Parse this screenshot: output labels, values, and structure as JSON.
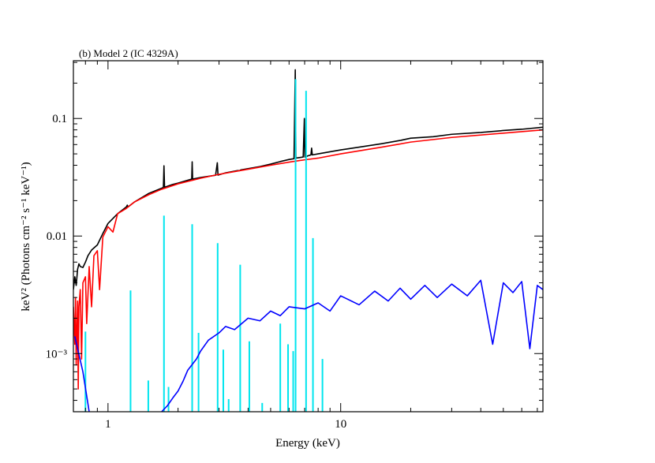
{
  "chart_data": {
    "type": "line",
    "title": "(b) Model 2 (IC 4329A)",
    "xlabel": "Energy (keV)",
    "ylabel": "keV² (Photons cm⁻² s⁻¹ keV⁻¹)",
    "xscale": "log",
    "yscale": "log",
    "xlim": [
      0.71,
      74
    ],
    "ylim": [
      0.00032,
      0.31
    ],
    "xticks": [
      1,
      10
    ],
    "yticks": [
      {
        "value": 0.001,
        "label": "10⁻³"
      },
      0.01,
      0.1
    ],
    "xminorticks": [
      0.8,
      0.9,
      2,
      3,
      4,
      5,
      6,
      7,
      8,
      9,
      20,
      30,
      40,
      50,
      60,
      70
    ],
    "yminorticks": [
      0.0004,
      0.0005,
      0.0006,
      0.0007,
      0.0008,
      0.0009,
      0.002,
      0.003,
      0.004,
      0.005,
      0.006,
      0.007,
      0.008,
      0.009,
      0.02,
      0.03,
      0.04,
      0.05,
      0.06,
      0.07,
      0.08,
      0.09,
      0.2,
      0.3
    ],
    "series": [
      {
        "color": "#000000",
        "style": "line",
        "x": [
          0.71,
          0.72,
          0.73,
          0.74,
          0.75,
          0.76,
          0.78,
          0.8,
          0.82,
          0.85,
          0.9,
          0.95,
          1.0,
          1.1,
          1.2,
          1.21,
          1.22,
          1.3,
          1.5,
          1.7,
          1.73,
          1.74,
          1.75,
          1.9,
          2.0,
          2.2,
          2.29,
          2.3,
          2.31,
          2.5,
          2.9,
          2.95,
          2.97,
          3.2,
          3.6,
          3.68,
          3.72,
          4.5,
          5,
          5.5,
          6.0,
          6.3,
          6.38,
          6.42,
          6.5,
          6.9,
          6.98,
          7.02,
          7.2,
          7.45,
          7.5,
          7.55,
          8,
          10,
          12,
          15,
          18,
          20,
          25,
          30,
          40,
          50,
          60,
          74
        ],
        "values": [
          0.0035,
          0.0045,
          0.0038,
          0.0052,
          0.0058,
          0.0055,
          0.0054,
          0.006,
          0.0068,
          0.0076,
          0.0084,
          0.0105,
          0.0128,
          0.0155,
          0.0177,
          0.0183,
          0.0177,
          0.0195,
          0.0231,
          0.0255,
          0.026,
          0.0396,
          0.026,
          0.0275,
          0.0282,
          0.0298,
          0.0305,
          0.0428,
          0.0305,
          0.0315,
          0.0329,
          0.042,
          0.033,
          0.0345,
          0.036,
          0.036,
          0.0365,
          0.039,
          0.0409,
          0.043,
          0.0448,
          0.0455,
          0.26,
          0.046,
          0.0462,
          0.047,
          0.1,
          0.047,
          0.048,
          0.049,
          0.056,
          0.049,
          0.05,
          0.054,
          0.057,
          0.061,
          0.065,
          0.068,
          0.07,
          0.0734,
          0.076,
          0.079,
          0.081,
          0.0843
        ]
      },
      {
        "color": "#ff0000",
        "style": "line",
        "x": [
          0.71,
          0.72,
          0.725,
          0.73,
          0.74,
          0.745,
          0.75,
          0.76,
          0.77,
          0.78,
          0.8,
          0.81,
          0.83,
          0.85,
          0.87,
          0.9,
          0.92,
          0.95,
          1.0,
          1.05,
          1.1,
          1.2,
          1.3,
          1.5,
          1.7,
          2,
          2.5,
          3,
          4,
          5,
          6,
          7,
          8,
          10,
          15,
          20,
          30,
          50,
          74
        ],
        "values": [
          0.0025,
          0.0012,
          0.003,
          0.0008,
          0.0028,
          0.0005,
          0.0025,
          0.0035,
          0.0009,
          0.004,
          0.0045,
          0.0018,
          0.0055,
          0.0025,
          0.0068,
          0.0075,
          0.0035,
          0.0098,
          0.012,
          0.0108,
          0.0155,
          0.0172,
          0.0195,
          0.0225,
          0.025,
          0.0278,
          0.031,
          0.0335,
          0.037,
          0.04,
          0.0425,
          0.0445,
          0.046,
          0.05,
          0.057,
          0.063,
          0.069,
          0.075,
          0.08
        ]
      },
      {
        "color": "#00e5ee",
        "style": "stem",
        "x": [
          0.8,
          1.25,
          1.49,
          1.74,
          1.82,
          2.3,
          2.45,
          2.96,
          3.13,
          3.3,
          3.7,
          4.05,
          4.6,
          5.5,
          5.94,
          6.25,
          6.4,
          7.1,
          7.6,
          8.35
        ],
        "values": [
          0.00154,
          0.00344,
          0.00059,
          0.0149,
          0.00052,
          0.0126,
          0.0015,
          0.0087,
          0.00108,
          0.00041,
          0.0057,
          0.00127,
          0.00038,
          0.0018,
          0.0012,
          0.00105,
          0.216,
          0.172,
          0.0096,
          0.0009
        ]
      },
      {
        "color": "#0000ff",
        "style": "line",
        "x": [
          0.72,
          0.78,
          0.83,
          1.0,
          1.7,
          1.8,
          1.9,
          2.0,
          2.1,
          2.2,
          2.4,
          2.5,
          2.7,
          3.0,
          3.2,
          3.5,
          4,
          4.5,
          5,
          5.5,
          6,
          7,
          8,
          9,
          10,
          12,
          14,
          16,
          18,
          20,
          23,
          26,
          30,
          35,
          40,
          45,
          50,
          55,
          60,
          65,
          70,
          74
        ],
        "values": [
          0.0014,
          0.0007,
          0.00032,
          null,
          0.00032,
          0.00036,
          0.00042,
          0.00048,
          0.00058,
          0.00072,
          0.0009,
          0.00105,
          0.0013,
          0.0015,
          0.0017,
          0.0016,
          0.002,
          0.0019,
          0.0023,
          0.0021,
          0.0025,
          0.0024,
          0.0027,
          0.0023,
          0.0031,
          0.0026,
          0.0034,
          0.0028,
          0.0036,
          0.0029,
          0.0038,
          0.003,
          0.0039,
          0.0031,
          0.0042,
          0.0012,
          0.004,
          0.0033,
          0.0041,
          0.0011,
          0.0038,
          0.0035
        ]
      }
    ]
  }
}
